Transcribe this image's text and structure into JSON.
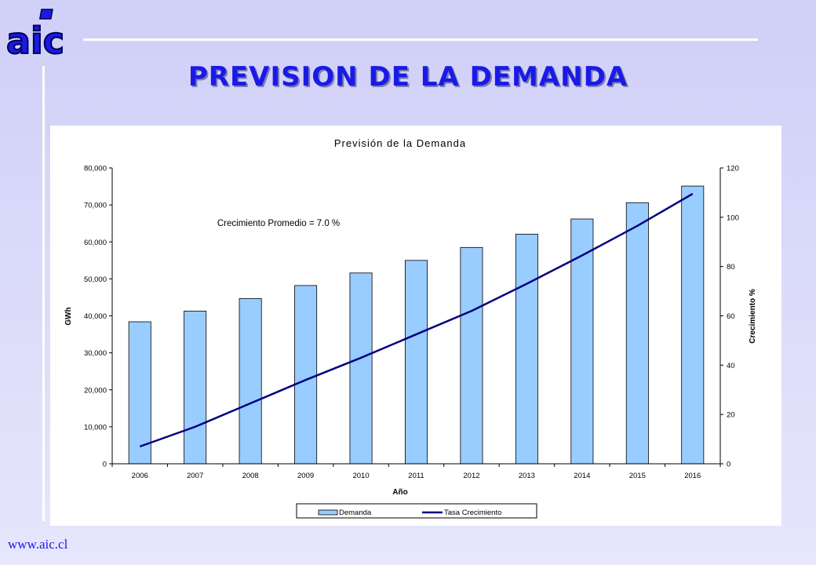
{
  "brand": {
    "logo_text": "aic",
    "url": "www.aic.cl"
  },
  "slide": {
    "title": "PREVISION DE LA DEMANDA"
  },
  "colors": {
    "bar_fill": "#99ccff",
    "line": "#000080",
    "title": "#1a1ae6",
    "background": "#d6d6fa"
  },
  "chart_data": {
    "type": "bar",
    "title": "Previsión de la Demanda",
    "xlabel": "Año",
    "ylabel": "GWh",
    "y2label": "Crecimiento %",
    "annotation": "Crecimiento Promedio = 7.0 %",
    "categories": [
      "2006",
      "2007",
      "2008",
      "2009",
      "2010",
      "2011",
      "2012",
      "2013",
      "2014",
      "2015",
      "2016"
    ],
    "ylim": [
      0,
      80000
    ],
    "y_ticks": [
      "0",
      "10,000",
      "20,000",
      "30,000",
      "40,000",
      "50,000",
      "60,000",
      "70,000",
      "80,000"
    ],
    "y2lim": [
      0,
      120
    ],
    "y2_ticks": [
      "0",
      "20",
      "40",
      "60",
      "80",
      "100",
      "120"
    ],
    "series": [
      {
        "name": "Demanda",
        "type": "bar",
        "axis": "left",
        "values": [
          38400,
          41300,
          44700,
          48200,
          51600,
          55000,
          58500,
          62100,
          66200,
          70600,
          75100
        ]
      },
      {
        "name": "Tasa Crecimiento",
        "type": "line",
        "axis": "right",
        "values": [
          7,
          15,
          24.5,
          34,
          43,
          52.5,
          62,
          73,
          84.5,
          96.5,
          109.5
        ]
      }
    ],
    "legend_position": "bottom",
    "grid": false
  }
}
